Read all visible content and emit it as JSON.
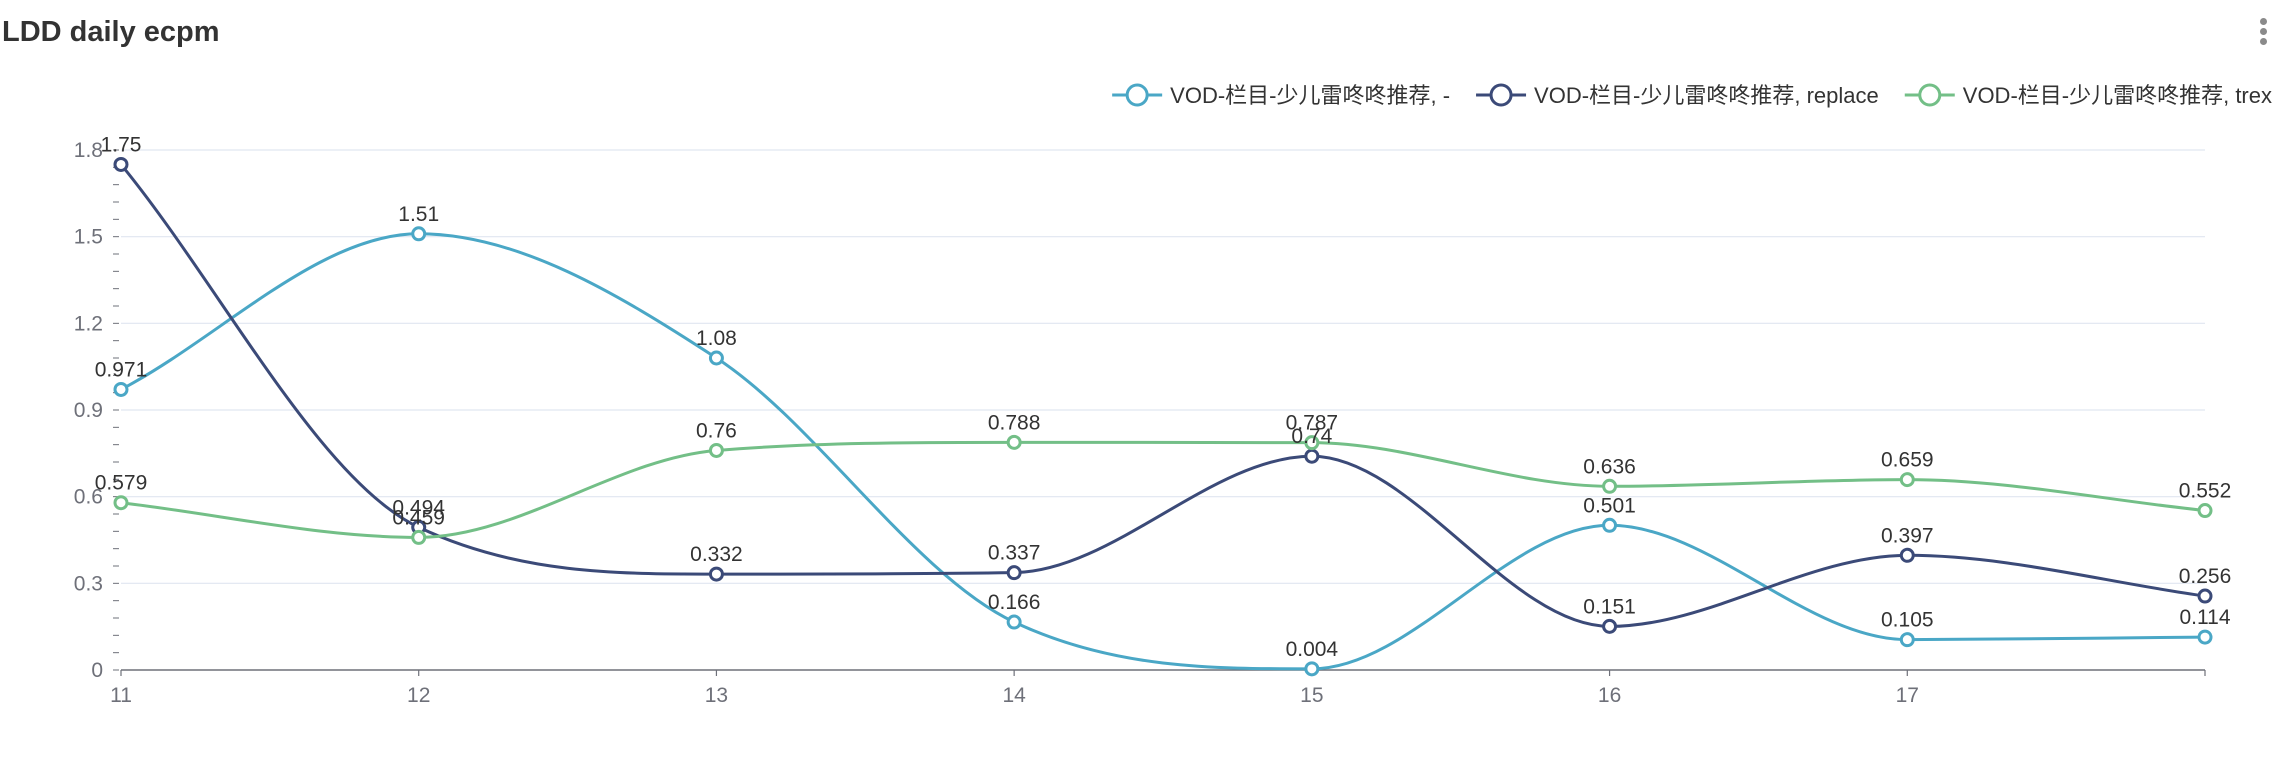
{
  "chart_data": {
    "type": "line",
    "title": "LDD daily ecpm",
    "x": [
      "11",
      "12",
      "13",
      "14",
      "15",
      "16",
      "17",
      ""
    ],
    "yticks": [
      "0",
      "0.3",
      "0.6",
      "0.9",
      "1.2",
      "1.5",
      "1.8"
    ],
    "ylim": [
      0,
      1.8
    ],
    "grid": true,
    "legend": "top-right",
    "smooth": true,
    "series": [
      {
        "name": "VOD-栏目-少儿雷咚咚推荐, -",
        "color": "#4aa7c6",
        "values": [
          0.971,
          1.51,
          1.08,
          0.166,
          0.004,
          0.501,
          0.105,
          0.114
        ],
        "labels": [
          "0.971",
          "1.51",
          "1.08",
          "0.166",
          "0.004",
          "0.501",
          "0.105",
          "0.114"
        ]
      },
      {
        "name": "VOD-栏目-少儿雷咚咚推荐, replace",
        "color": "#3b4a78",
        "values": [
          1.75,
          0.494,
          0.332,
          0.337,
          0.74,
          0.151,
          0.397,
          0.256
        ],
        "labels": [
          "1.75",
          "0.494",
          "0.332",
          "0.337",
          "0.74",
          "0.151",
          "0.397",
          "0.256"
        ]
      },
      {
        "name": "VOD-栏目-少儿雷咚咚推荐, trex",
        "color": "#73bf87",
        "values": [
          0.579,
          0.459,
          0.76,
          0.788,
          0.787,
          0.636,
          0.659,
          0.552
        ],
        "labels": [
          "0.579",
          "0.459",
          "0.76",
          "0.788",
          "0.787",
          "0.636",
          "0.659",
          "0.552"
        ]
      }
    ]
  }
}
